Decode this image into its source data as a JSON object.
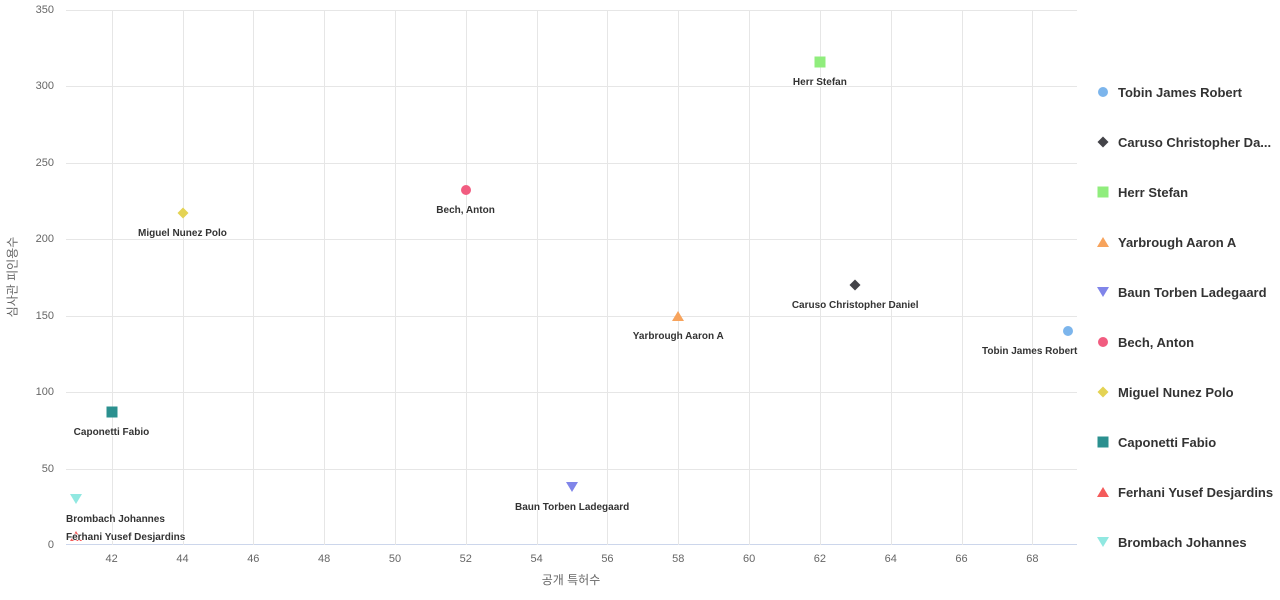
{
  "chart_data": {
    "type": "scatter",
    "title": "",
    "xlabel": "공개 특허수",
    "ylabel": "심사관 피인용수",
    "xlim": [
      40.71,
      69.26
    ],
    "ylim": [
      0,
      350
    ],
    "x_ticks": [
      42,
      44,
      46,
      48,
      50,
      52,
      54,
      56,
      58,
      60,
      62,
      64,
      66,
      68
    ],
    "y_ticks": [
      0,
      50,
      100,
      150,
      200,
      250,
      300,
      350
    ],
    "grid": true,
    "legend_position": "right",
    "series": [
      {
        "name": "Tobin James Robert",
        "legend_label": "Tobin James Robert",
        "x": 69,
        "y": 140,
        "marker": "circle",
        "color": "#7CB5EC"
      },
      {
        "name": "Caruso Christopher Daniel",
        "legend_label": "Caruso Christopher Da...",
        "x": 63,
        "y": 170,
        "marker": "diamond",
        "color": "#434348"
      },
      {
        "name": "Herr Stefan",
        "legend_label": "Herr Stefan",
        "x": 62,
        "y": 316,
        "marker": "square",
        "color": "#90ED7D"
      },
      {
        "name": "Yarbrough Aaron A",
        "legend_label": "Yarbrough Aaron A",
        "x": 58,
        "y": 150,
        "marker": "triangle",
        "color": "#F7A35C"
      },
      {
        "name": "Baun Torben Ladegaard",
        "legend_label": "Baun Torben Ladegaard",
        "x": 55,
        "y": 38,
        "marker": "triangle-down",
        "color": "#8085E9"
      },
      {
        "name": "Bech, Anton",
        "legend_label": "Bech, Anton",
        "x": 52,
        "y": 232,
        "marker": "circle",
        "color": "#F15C80"
      },
      {
        "name": "Miguel Nunez Polo",
        "legend_label": "Miguel Nunez Polo",
        "x": 44,
        "y": 217,
        "marker": "diamond",
        "color": "#E4D354"
      },
      {
        "name": "Caponetti Fabio",
        "legend_label": "Caponetti Fabio",
        "x": 42,
        "y": 87,
        "marker": "square",
        "color": "#2B908F"
      },
      {
        "name": "Ferhani Yusef Desjardins",
        "legend_label": "Ferhani Yusef Desjardins",
        "x": 41,
        "y": 6,
        "marker": "triangle",
        "color": "#F45B5B"
      },
      {
        "name": "Brombach Johannes",
        "legend_label": "Brombach Johannes",
        "x": 41,
        "y": 30,
        "marker": "triangle-down",
        "color": "#91E8E1"
      }
    ]
  },
  "colors": {
    "background": "#FFFFFF",
    "gridline": "#E6E6E6",
    "axis_line": "#CCD6EB",
    "tick_text": "#666666",
    "label_text": "#333333"
  }
}
